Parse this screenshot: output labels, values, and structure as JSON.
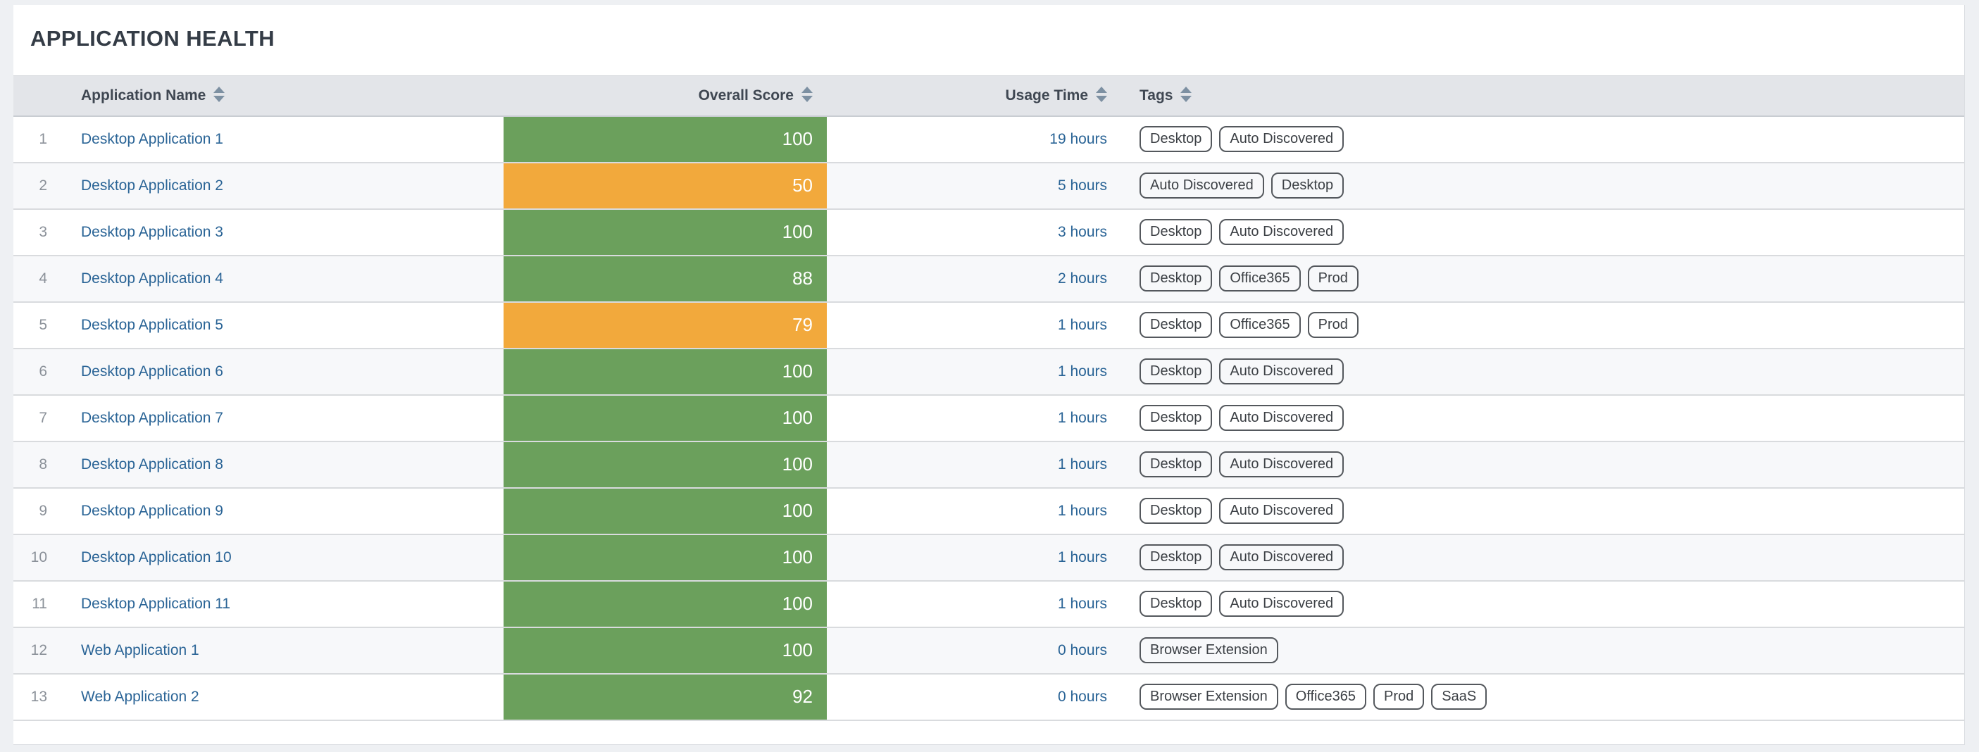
{
  "page": {
    "title": "APPLICATION HEALTH"
  },
  "colors": {
    "page_background": "#eef0f3",
    "card_background": "#ffffff",
    "header_background": "#e3e5e9",
    "row_stripe": "#f7f8fa",
    "row_border": "#d9dbde",
    "link_blue": "#2a6496",
    "score_green": "#6ba05c",
    "score_orange": "#f2a93c",
    "tag_border": "#54585d",
    "sort_icon": "#7d90a2",
    "row_number_gray": "#8b9199",
    "title_color": "#343c46"
  },
  "table": {
    "columns": [
      {
        "label": "Application Name",
        "sortable": true,
        "align": "left"
      },
      {
        "label": "Overall Score",
        "sortable": true,
        "align": "right"
      },
      {
        "label": "Usage Time",
        "sortable": true,
        "align": "right"
      },
      {
        "label": "Tags",
        "sortable": true,
        "align": "left"
      }
    ],
    "score_colors": {
      "green": "#6ba05c",
      "orange": "#f2a93c"
    },
    "rows": [
      {
        "index": 1,
        "name": "Desktop Application 1",
        "score": 100,
        "score_level": "green",
        "usage": "19 hours",
        "tags": [
          "Desktop",
          "Auto Discovered"
        ]
      },
      {
        "index": 2,
        "name": "Desktop Application 2",
        "score": 50,
        "score_level": "orange",
        "usage": "5 hours",
        "tags": [
          "Auto Discovered",
          "Desktop"
        ]
      },
      {
        "index": 3,
        "name": "Desktop Application 3",
        "score": 100,
        "score_level": "green",
        "usage": "3 hours",
        "tags": [
          "Desktop",
          "Auto Discovered"
        ]
      },
      {
        "index": 4,
        "name": "Desktop Application 4",
        "score": 88,
        "score_level": "green",
        "usage": "2 hours",
        "tags": [
          "Desktop",
          "Office365",
          "Prod"
        ]
      },
      {
        "index": 5,
        "name": "Desktop Application 5",
        "score": 79,
        "score_level": "orange",
        "usage": "1 hours",
        "tags": [
          "Desktop",
          "Office365",
          "Prod"
        ]
      },
      {
        "index": 6,
        "name": "Desktop Application 6",
        "score": 100,
        "score_level": "green",
        "usage": "1 hours",
        "tags": [
          "Desktop",
          "Auto Discovered"
        ]
      },
      {
        "index": 7,
        "name": "Desktop Application 7",
        "score": 100,
        "score_level": "green",
        "usage": "1 hours",
        "tags": [
          "Desktop",
          "Auto Discovered"
        ]
      },
      {
        "index": 8,
        "name": "Desktop Application 8",
        "score": 100,
        "score_level": "green",
        "usage": "1 hours",
        "tags": [
          "Desktop",
          "Auto Discovered"
        ]
      },
      {
        "index": 9,
        "name": "Desktop Application 9",
        "score": 100,
        "score_level": "green",
        "usage": "1 hours",
        "tags": [
          "Desktop",
          "Auto Discovered"
        ]
      },
      {
        "index": 10,
        "name": "Desktop Application 10",
        "score": 100,
        "score_level": "green",
        "usage": "1 hours",
        "tags": [
          "Desktop",
          "Auto Discovered"
        ]
      },
      {
        "index": 11,
        "name": "Desktop Application 11",
        "score": 100,
        "score_level": "green",
        "usage": "1 hours",
        "tags": [
          "Desktop",
          "Auto Discovered"
        ]
      },
      {
        "index": 12,
        "name": "Web Application 1",
        "score": 100,
        "score_level": "green",
        "usage": "0 hours",
        "tags": [
          "Browser Extension"
        ]
      },
      {
        "index": 13,
        "name": "Web Application 2",
        "score": 92,
        "score_level": "green",
        "usage": "0 hours",
        "tags": [
          "Browser Extension",
          "Office365",
          "Prod",
          "SaaS"
        ]
      }
    ]
  }
}
